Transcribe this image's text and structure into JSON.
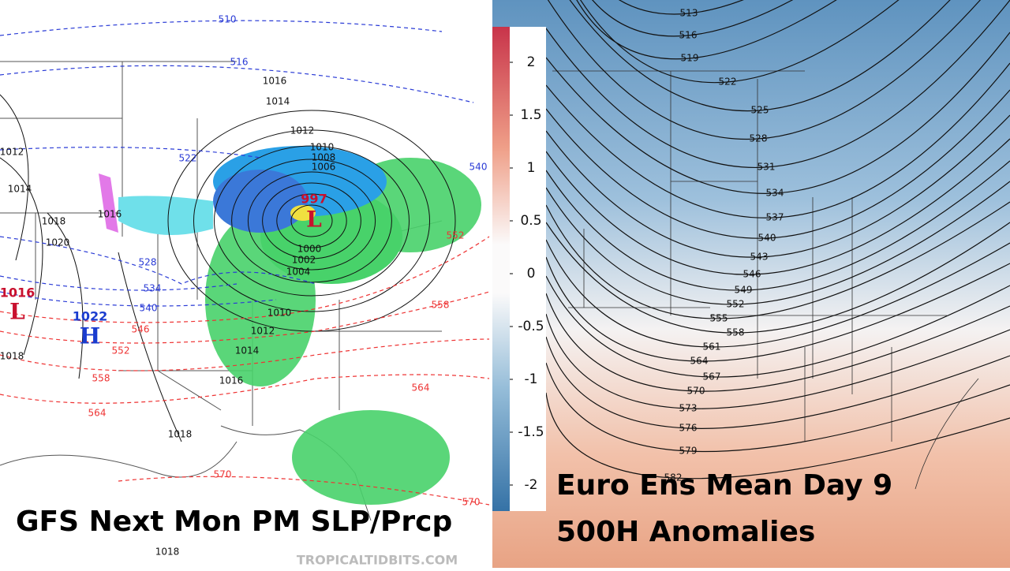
{
  "left_map": {
    "caption": "GFS Next Mon PM SLP/Prcp",
    "watermark": "TROPICALTIDBITS.COM",
    "centers": [
      {
        "letter": "L",
        "pressure": "997"
      },
      {
        "letter": "L",
        "pressure": "1016"
      },
      {
        "letter": "H",
        "pressure": "1022"
      }
    ],
    "isobar_labels": [
      "1016",
      "1014",
      "1012",
      "1010",
      "1008",
      "1006",
      "1000",
      "1002",
      "1004",
      "1010",
      "1012",
      "1014",
      "1016",
      "1018",
      "1012",
      "1014",
      "1016",
      "1018",
      "1020",
      "1018",
      "1018"
    ],
    "thickness_labels": [
      "510",
      "516",
      "522",
      "528",
      "534",
      "540",
      "546",
      "552",
      "558",
      "564",
      "570",
      "570",
      "552",
      "558",
      "564",
      "540"
    ]
  },
  "right_map": {
    "title_lines": [
      "Euro Ens Mean Day 9",
      "500H Anomalies"
    ],
    "colorbar_ticks": [
      "2",
      "1.5",
      "1",
      "0.5",
      "0",
      "-0.5",
      "-1",
      "-1.5",
      "-2"
    ],
    "height_labels": [
      "513",
      "516",
      "519",
      "522",
      "525",
      "528",
      "531",
      "534",
      "537",
      "540",
      "543",
      "546",
      "549",
      "552",
      "555",
      "558",
      "561",
      "564",
      "567",
      "570",
      "573",
      "576",
      "579",
      "582"
    ]
  }
}
